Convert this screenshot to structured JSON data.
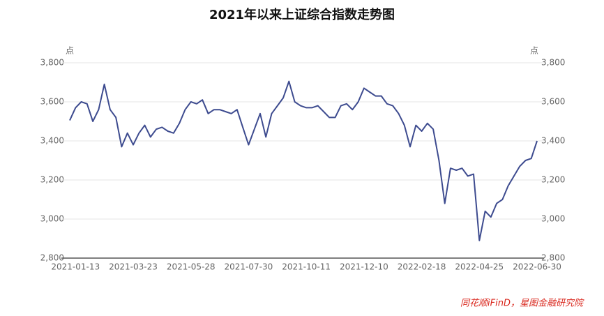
{
  "chart_data": {
    "type": "line",
    "title": "2021年以来上证综合指数走势图",
    "y_unit": "点",
    "y2_unit": "点",
    "source": "同花顺iFinD，星图金融研究院",
    "categories": [
      null,
      "2021-01-13",
      null,
      null,
      null,
      null,
      null,
      null,
      null,
      null,
      null,
      "2021-03-23",
      null,
      null,
      null,
      null,
      null,
      null,
      null,
      null,
      null,
      "2021-05-28",
      null,
      null,
      null,
      null,
      null,
      null,
      null,
      null,
      null,
      "2021-07-30",
      null,
      null,
      null,
      null,
      null,
      null,
      null,
      null,
      null,
      "2021-10-11",
      null,
      null,
      null,
      null,
      null,
      null,
      null,
      null,
      null,
      "2021-12-10",
      null,
      null,
      null,
      null,
      null,
      null,
      null,
      null,
      null,
      "2022-02-18",
      null,
      null,
      null,
      null,
      null,
      null,
      null,
      null,
      null,
      "2022-04-25",
      null,
      null,
      null,
      null,
      null,
      null,
      null,
      null,
      null,
      "2022-06-30"
    ],
    "series": [
      {
        "name": "上证综合指数",
        "color": "#3d4b8f",
        "values": [
          3505,
          3570,
          3600,
          3590,
          3500,
          3560,
          3690,
          3560,
          3520,
          3370,
          3440,
          3380,
          3440,
          3480,
          3420,
          3460,
          3470,
          3450,
          3440,
          3490,
          3560,
          3600,
          3590,
          3610,
          3540,
          3560,
          3560,
          3550,
          3540,
          3560,
          3470,
          3380,
          3460,
          3540,
          3420,
          3540,
          3580,
          3620,
          3705,
          3600,
          3580,
          3570,
          3570,
          3580,
          3550,
          3520,
          3520,
          3580,
          3590,
          3560,
          3600,
          3670,
          3650,
          3630,
          3630,
          3590,
          3580,
          3540,
          3480,
          3370,
          3480,
          3450,
          3490,
          3460,
          3300,
          3080,
          3260,
          3250,
          3260,
          3220,
          3230,
          2890,
          3040,
          3010,
          3080,
          3100,
          3170,
          3220,
          3270,
          3300,
          3310,
          3400
        ]
      }
    ],
    "ylim": [
      2800,
      3800
    ],
    "yticks": [
      {
        "value": 2800,
        "label": "2,800"
      },
      {
        "value": 3000,
        "label": "3,000"
      },
      {
        "value": 3200,
        "label": "3,200"
      },
      {
        "value": 3400,
        "label": "3,400"
      },
      {
        "value": 3600,
        "label": "3,600"
      },
      {
        "value": 3800,
        "label": "3,800"
      }
    ],
    "y2lim": [
      2800,
      3800
    ],
    "y2ticks": [
      {
        "value": 2800,
        "label": "2,800"
      },
      {
        "value": 3000,
        "label": "3,000"
      },
      {
        "value": 3200,
        "label": "3,200"
      },
      {
        "value": 3400,
        "label": "3,400"
      },
      {
        "value": 3600,
        "label": "3,600"
      },
      {
        "value": 3800,
        "label": "3,800"
      }
    ],
    "grid": true
  }
}
